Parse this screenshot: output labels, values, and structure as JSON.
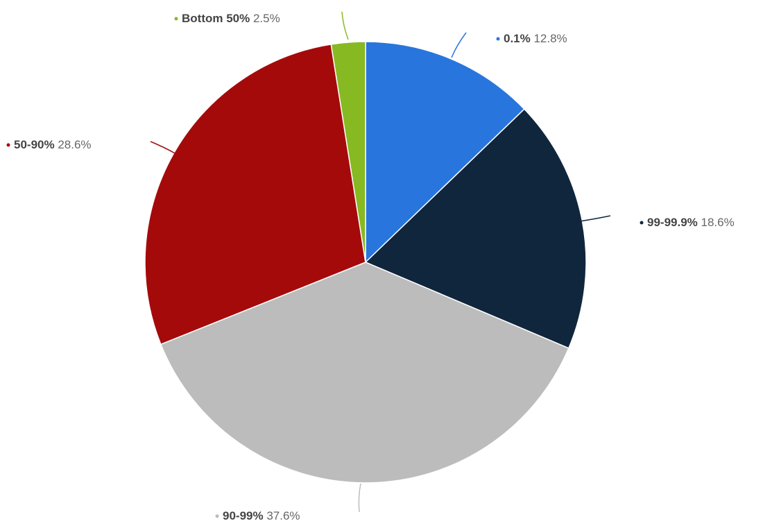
{
  "chart_data": {
    "type": "pie",
    "slices": [
      {
        "label": "0.1%",
        "value": 12.8,
        "value_label": "12.8%",
        "color": "#2876dd"
      },
      {
        "label": "99-99.9%",
        "value": 18.6,
        "value_label": "18.6%",
        "color": "#10263d"
      },
      {
        "label": "90-99%",
        "value": 37.6,
        "value_label": "37.6%",
        "color": "#bcbcbc"
      },
      {
        "label": "50-90%",
        "value": 28.6,
        "value_label": "28.6%",
        "color": "#a50a0a"
      },
      {
        "label": "Bottom 50%",
        "value": 2.5,
        "value_label": "2.5%",
        "color": "#87b922"
      }
    ],
    "start_angle": "12 o'clock",
    "direction": "clockwise"
  }
}
